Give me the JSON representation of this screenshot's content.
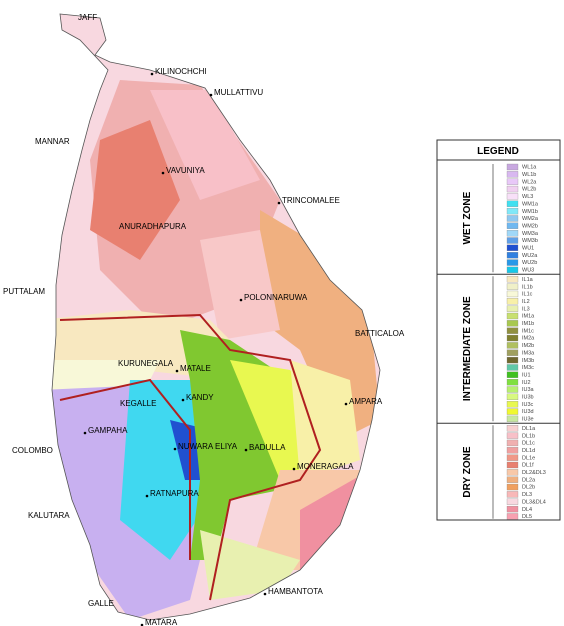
{
  "cities": [
    "JAFF",
    "KILINOCHCHI",
    "MULLATTIVU",
    "MANNAR",
    "VAVUNIYA",
    "TRINCOMALEE",
    "ANURADHAPURA",
    "PUTTALAM",
    "POLONNARUWA",
    "BATTICALOA",
    "KURUNEGALA",
    "MATALE",
    "KEGALLE",
    "KANDY",
    "AMPARA",
    "GAMPAHA",
    "COLOMBO",
    "NUWARA ELIYA",
    "BADULLA",
    "MONERAGALA",
    "RATNAPURA",
    "KALUTARA",
    "HAMBANTOTA",
    "GALLE",
    "MATARA"
  ],
  "legend": {
    "title": "LEGEND",
    "zones": [
      {
        "name": "WET ZONE",
        "entries": [
          {
            "label": "WL1a",
            "color": "#c8a8e0"
          },
          {
            "label": "WL1b",
            "color": "#d8b8f0"
          },
          {
            "label": "WL2a",
            "color": "#e8c8f8"
          },
          {
            "label": "WL2b",
            "color": "#f0d0f0"
          },
          {
            "label": "WL3",
            "color": "#f8e0f8"
          },
          {
            "label": "WM1a",
            "color": "#40e0f0"
          },
          {
            "label": "WM1b",
            "color": "#80e8f8"
          },
          {
            "label": "WM2a",
            "color": "#90c8f0"
          },
          {
            "label": "WM2b",
            "color": "#70b8f0"
          },
          {
            "label": "WM3a",
            "color": "#a0d8f8"
          },
          {
            "label": "WM3b",
            "color": "#60a0e8"
          },
          {
            "label": "WU1",
            "color": "#2050d0"
          },
          {
            "label": "WU2a",
            "color": "#3080e0"
          },
          {
            "label": "WU2b",
            "color": "#2898e8"
          },
          {
            "label": "WU3",
            "color": "#18c8e8"
          }
        ]
      },
      {
        "name": "INTERMEDIATE ZONE",
        "entries": [
          {
            "label": "IL1a",
            "color": "#f8e8c0"
          },
          {
            "label": "IL1b",
            "color": "#f0f0c8"
          },
          {
            "label": "IL1c",
            "color": "#f8f8d8"
          },
          {
            "label": "IL2",
            "color": "#f8f0a8"
          },
          {
            "label": "IL3",
            "color": "#e8f0b0"
          },
          {
            "label": "IM1a",
            "color": "#c8e070"
          },
          {
            "label": "IM1b",
            "color": "#a8c850"
          },
          {
            "label": "IM1c",
            "color": "#909040"
          },
          {
            "label": "IM2a",
            "color": "#808030"
          },
          {
            "label": "IM2b",
            "color": "#b0c060"
          },
          {
            "label": "IM3a",
            "color": "#a0a060"
          },
          {
            "label": "IM3b",
            "color": "#706830"
          },
          {
            "label": "IM3c",
            "color": "#60c8a8"
          },
          {
            "label": "IU1",
            "color": "#40c020"
          },
          {
            "label": "IU2",
            "color": "#80e040"
          },
          {
            "label": "IU3a",
            "color": "#b8f070"
          },
          {
            "label": "IU3b",
            "color": "#d8f880"
          },
          {
            "label": "IU3c",
            "color": "#e8f850"
          },
          {
            "label": "IU3d",
            "color": "#f0f830"
          },
          {
            "label": "IU3e",
            "color": "#c8e8a0"
          }
        ]
      },
      {
        "name": "DRY ZONE",
        "entries": [
          {
            "label": "DL1a",
            "color": "#f8d0d0"
          },
          {
            "label": "DL1b",
            "color": "#f8c0c8"
          },
          {
            "label": "DL1c",
            "color": "#f0b0b0"
          },
          {
            "label": "DL1d",
            "color": "#f0a0a0"
          },
          {
            "label": "DL1e",
            "color": "#f09888"
          },
          {
            "label": "DL1f",
            "color": "#e88070"
          },
          {
            "label": "DL2&DL3",
            "color": "#f8c8a8"
          },
          {
            "label": "DL2a",
            "color": "#f0b080"
          },
          {
            "label": "DL2b",
            "color": "#f0a060"
          },
          {
            "label": "DL3",
            "color": "#f8b8b8"
          },
          {
            "label": "DL3&DL4",
            "color": "#f8d8e0"
          },
          {
            "label": "DL4",
            "color": "#f090a0"
          },
          {
            "label": "DL5",
            "color": "#f8a0b0"
          }
        ]
      }
    ]
  }
}
